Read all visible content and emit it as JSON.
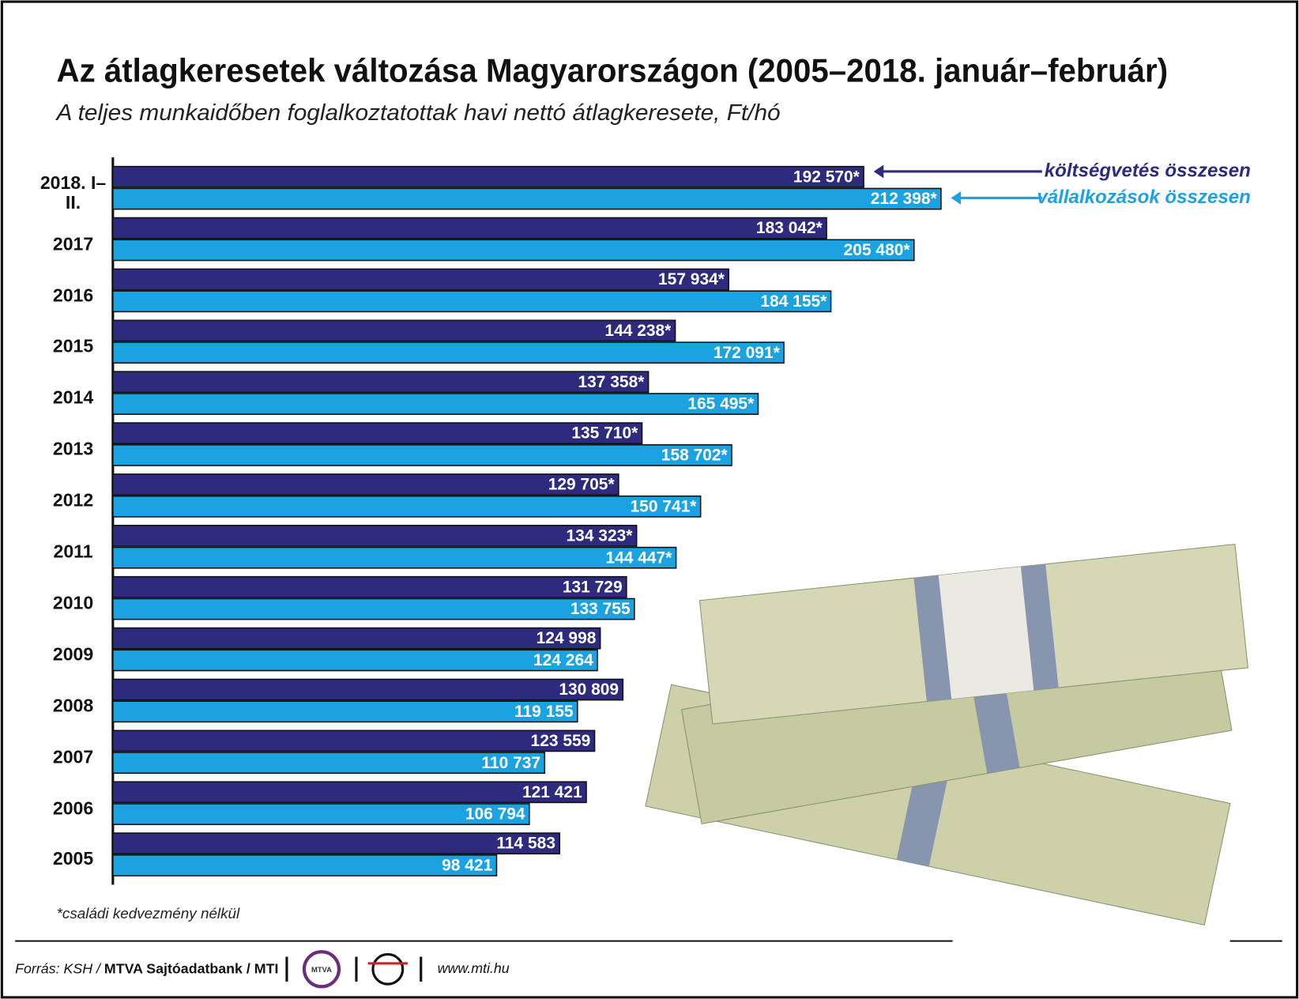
{
  "chart_data": {
    "type": "bar",
    "orientation": "horizontal",
    "title": "Az átlagkeresetek változása Magyarországon (2005–2018. január–február)",
    "subtitle": "A teljes munkaidőben foglalkoztatottak havi nettó átlagkeresete, Ft/hó",
    "categories": [
      "2018. I–II.",
      "2017",
      "2016",
      "2015",
      "2014",
      "2013",
      "2012",
      "2011",
      "2010",
      "2009",
      "2008",
      "2007",
      "2006",
      "2005"
    ],
    "series": [
      {
        "name": "költségvetés összesen",
        "color": "#2e2a7e",
        "values": [
          192570,
          183042,
          157934,
          144238,
          137358,
          135710,
          129705,
          134323,
          131729,
          124998,
          130809,
          123559,
          121421,
          114583
        ],
        "value_labels": [
          "192 570*",
          "183 042*",
          "157 934*",
          "144 238*",
          "137 358*",
          "135 710*",
          "129 705*",
          "134 323*",
          "131 729",
          "124 998",
          "130 809",
          "123 559",
          "121 421",
          "114 583"
        ]
      },
      {
        "name": "vállalkozások összesen",
        "color": "#1aa3e0",
        "values": [
          212398,
          205480,
          184155,
          172091,
          165495,
          158702,
          150741,
          144447,
          133755,
          124264,
          119155,
          110737,
          106794,
          98421
        ],
        "value_labels": [
          "212 398*",
          "205 480*",
          "184 155*",
          "172 091*",
          "165 495*",
          "158 702*",
          "150 741*",
          "144 447*",
          "133 755",
          "124 264",
          "119 155",
          "110 737",
          "106 794",
          "98 421"
        ]
      }
    ],
    "legend": "top-right",
    "footnote": "*családi kedvezmény nélkül",
    "source": "Forrás: KSH /",
    "source_bold": "MTVA Sajtóadatbank / MTI",
    "logo": "MTVA",
    "url": "www.mti.hu"
  }
}
